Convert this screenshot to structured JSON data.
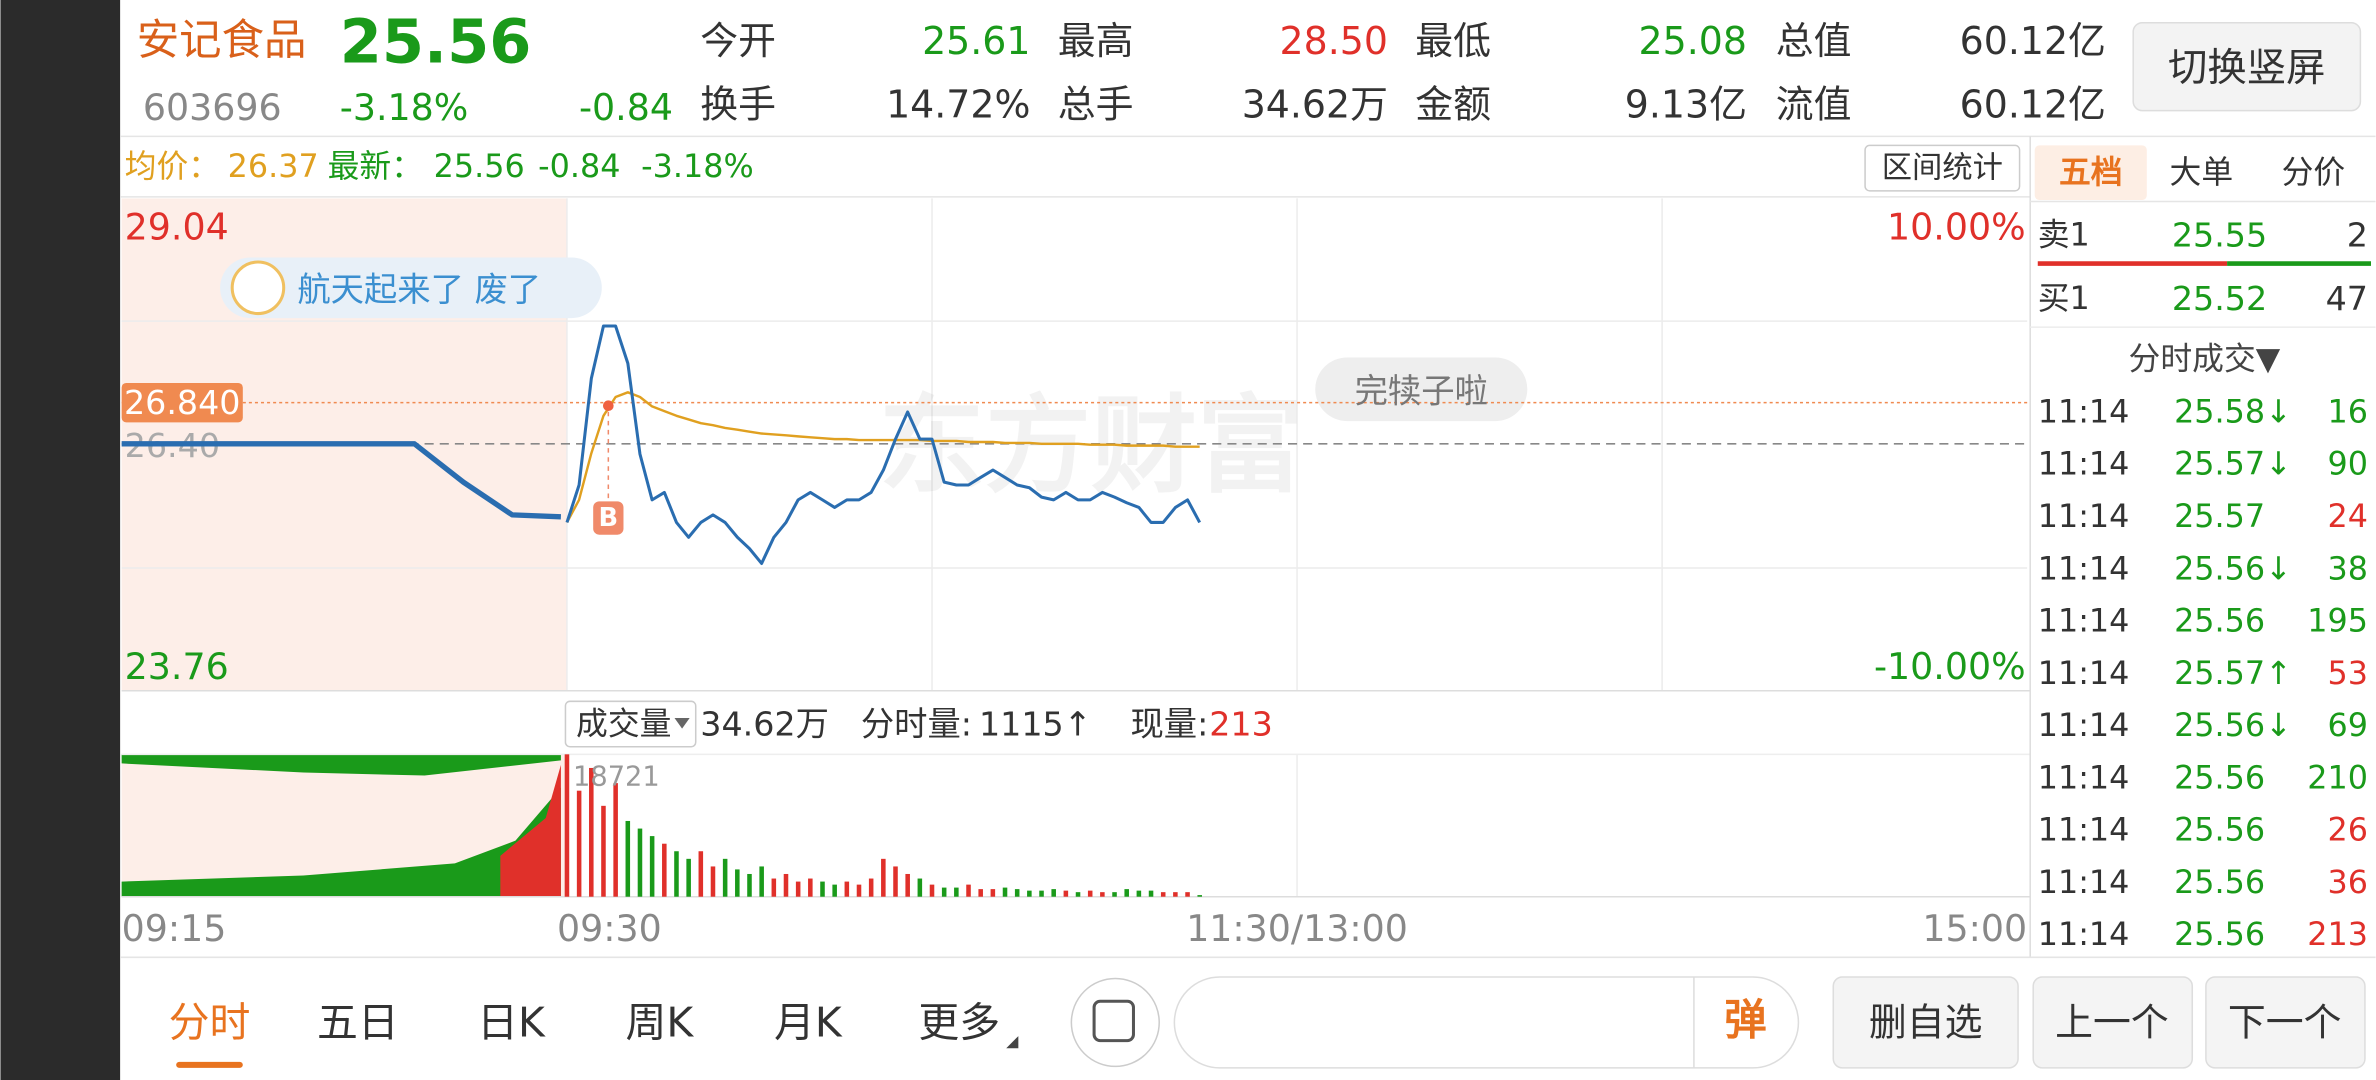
{
  "header": {
    "name": "安记食品",
    "price": "25.56",
    "code": "603696",
    "change_pct": "-3.18%",
    "change": "-0.84",
    "stats": [
      {
        "label": "今开",
        "value": "25.61"
      },
      {
        "label": "最高",
        "value": "28.50"
      },
      {
        "label": "最低",
        "value": "25.08"
      },
      {
        "label": "总值",
        "value": "60.12亿"
      },
      {
        "label": "换手",
        "value": "14.72%"
      },
      {
        "label": "总手",
        "value": "34.62万"
      },
      {
        "label": "金额",
        "value": "9.13亿"
      },
      {
        "label": "流值",
        "value": "60.12亿"
      }
    ],
    "button": "切换竖屏"
  },
  "info_bar": {
    "avg_label": "均价：",
    "avg": "26.37",
    "latest_label": "最新：",
    "latest": "25.56",
    "change": "-0.84",
    "change_pct": "-3.18%",
    "button": "区间统计"
  },
  "chart_data": {
    "type": "line",
    "ylim": [
      23.76,
      29.04
    ],
    "yticks": [
      29.04,
      23.76
    ],
    "y2lim": [
      -10,
      10
    ],
    "y2ticks": [
      {
        "value": 10,
        "label": "10.00%"
      },
      {
        "value": -10,
        "label": "-10.00%"
      }
    ],
    "reference_line": {
      "value": 26.4,
      "label": "26.40"
    },
    "crosshair": {
      "value": 26.84,
      "label": "26.840"
    },
    "xticks": [
      "09:15",
      "09:30",
      "11:30/13:00",
      "15:00"
    ],
    "watermark": "东方财富",
    "comment": "航天起来了  废了",
    "bubble": "完犊子啦",
    "marker": "B",
    "series": [
      {
        "name": "auction",
        "color": "#2a6db0",
        "values": [
          26.4,
          26.4,
          26.4,
          26.4,
          26.4,
          26.4,
          26.4,
          25.99,
          25.64,
          25.62
        ]
      },
      {
        "name": "price",
        "color": "#2a6db0",
        "values": [
          25.56,
          25.96,
          27.1,
          27.66,
          27.66,
          27.26,
          26.29,
          25.8,
          25.88,
          25.56,
          25.4,
          25.56,
          25.64,
          25.56,
          25.4,
          25.28,
          25.12,
          25.4,
          25.56,
          25.8,
          25.88,
          25.8,
          25.72,
          25.8,
          25.8,
          25.88,
          26.12,
          26.45,
          26.74,
          26.45,
          26.45,
          25.99,
          25.96,
          25.96,
          26.04,
          26.12,
          26.04,
          25.96,
          25.93,
          25.83,
          25.8,
          25.88,
          25.8,
          25.8,
          25.88,
          25.83,
          25.77,
          25.72,
          25.56,
          25.56,
          25.72,
          25.8,
          25.56
        ]
      },
      {
        "name": "average",
        "color": "#e0a020",
        "values": [
          25.56,
          25.8,
          26.3,
          26.7,
          26.9,
          26.95,
          26.9,
          26.8,
          26.75,
          26.7,
          26.66,
          26.62,
          26.6,
          26.57,
          26.55,
          26.53,
          26.51,
          26.5,
          26.49,
          26.48,
          26.47,
          26.46,
          26.45,
          26.45,
          26.44,
          26.44,
          26.44,
          26.44,
          26.44,
          26.44,
          26.43,
          26.43,
          26.43,
          26.42,
          26.42,
          26.42,
          26.41,
          26.41,
          26.41,
          26.4,
          26.4,
          26.4,
          26.4,
          26.39,
          26.39,
          26.39,
          26.38,
          26.38,
          26.38,
          26.38,
          26.37,
          26.37,
          26.37
        ]
      }
    ],
    "volume": {
      "label": "成交量",
      "total": "34.62万",
      "period_label": "分时量:",
      "period": "1115",
      "period_arrow": "↑",
      "current_label": "现量:",
      "current": "213",
      "ylim": [
        0,
        18721
      ],
      "up_color": "#e0302a",
      "down_color": "#1a9a1a",
      "values": [
        18721,
        13940,
        16930,
        11950,
        14940,
        9960,
        8960,
        7970,
        6970,
        5980,
        4980,
        5980,
        3980,
        4980,
        3590,
        2990,
        3980,
        2390,
        2990,
        1990,
        2390,
        1990,
        1590,
        1990,
        1590,
        2390,
        4980,
        3980,
        2990,
        2390,
        1590,
        1200,
        1200,
        1590,
        1000,
        1000,
        1200,
        1000,
        800,
        800,
        1000,
        800,
        600,
        800,
        600,
        600,
        1000,
        800,
        800,
        600,
        600,
        600,
        213
      ]
    }
  },
  "side_panel": {
    "tabs": [
      "五档",
      "大单",
      "分价"
    ],
    "order_book": [
      {
        "label": "卖1",
        "price": "25.55",
        "volume": "2"
      },
      {
        "label": "买1",
        "price": "25.52",
        "volume": "47"
      }
    ],
    "trades_title": "分时成交▼",
    "trades": [
      {
        "time": "11:14",
        "price": "25.58↓",
        "volume": "16",
        "color": "#1a9a1a"
      },
      {
        "time": "11:14",
        "price": "25.57↓",
        "volume": "90",
        "color": "#1a9a1a"
      },
      {
        "time": "11:14",
        "price": "25.57",
        "volume": "24",
        "color": "#e0302a"
      },
      {
        "time": "11:14",
        "price": "25.56↓",
        "volume": "38",
        "color": "#1a9a1a"
      },
      {
        "time": "11:14",
        "price": "25.56",
        "volume": "195",
        "color": "#1a9a1a"
      },
      {
        "time": "11:14",
        "price": "25.57↑",
        "volume": "53",
        "color": "#e0302a"
      },
      {
        "time": "11:14",
        "price": "25.56↓",
        "volume": "69",
        "color": "#1a9a1a"
      },
      {
        "time": "11:14",
        "price": "25.56",
        "volume": "210",
        "color": "#1a9a1a"
      },
      {
        "time": "11:14",
        "price": "25.56",
        "volume": "26",
        "color": "#e0302a"
      },
      {
        "time": "11:14",
        "price": "25.56",
        "volume": "36",
        "color": "#e0302a"
      },
      {
        "time": "11:14",
        "price": "25.56",
        "volume": "213",
        "color": "#e0302a"
      }
    ]
  },
  "bottom_bar": {
    "tabs": [
      "分时",
      "五日",
      "日K",
      "周K",
      "月K",
      "更多"
    ],
    "danmaku": "弹",
    "buttons": [
      "删自选",
      "上一个",
      "下一个"
    ]
  }
}
